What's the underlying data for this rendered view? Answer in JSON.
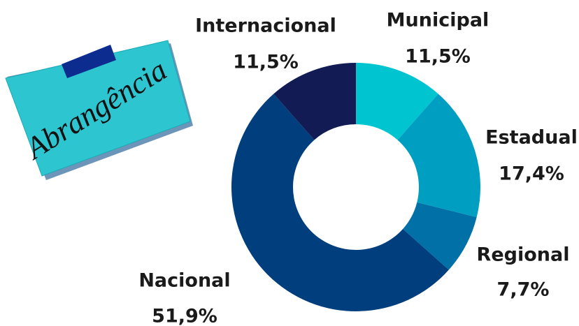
{
  "chart_data": {
    "type": "donut",
    "title": "Abrangência",
    "categories": [
      "Municipal",
      "Estadual",
      "Regional",
      "Nacional",
      "Internacional"
    ],
    "values": [
      11.5,
      17.4,
      7.7,
      51.9,
      11.5
    ],
    "value_labels": [
      "11,5%",
      "17,4%",
      "7,7%",
      "51,9%",
      "11,5%"
    ],
    "colors": [
      "#00c4cf",
      "#009fc1",
      "#0070a6",
      "#003e7e",
      "#131b55"
    ]
  }
}
